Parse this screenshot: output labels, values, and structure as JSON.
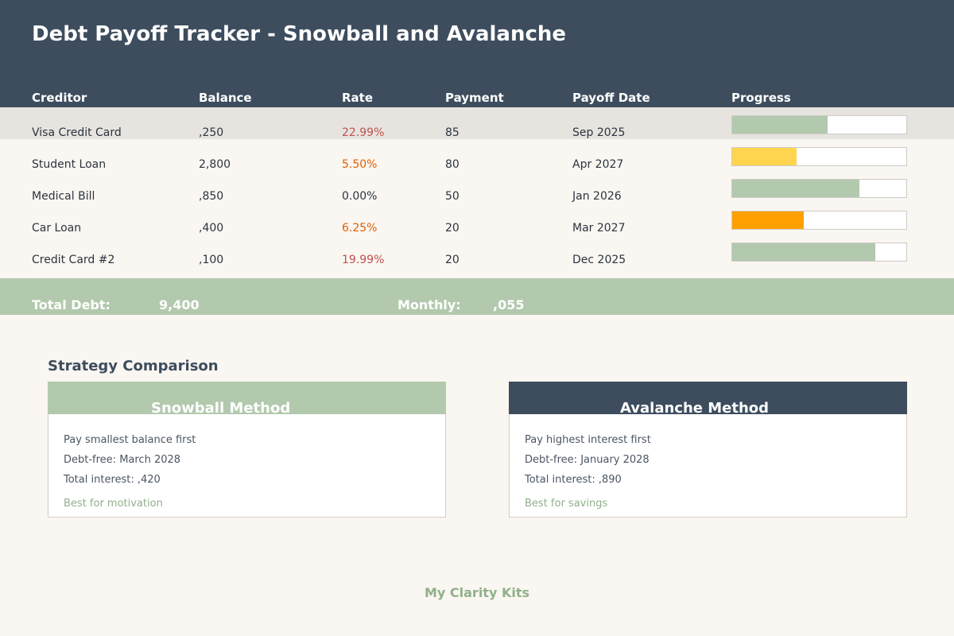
{
  "title": "Debt Payoff Tracker - Snowball and Avalanche",
  "columns": {
    "creditor": "Creditor",
    "balance": "Balance",
    "rate": "Rate",
    "payment": "Payment",
    "payoff_date": "Payoff Date",
    "progress": "Progress"
  },
  "debts": [
    {
      "creditor": "Visa Credit Card",
      "balance": ",250",
      "rate": "22.99%",
      "payment": "85",
      "payoff_date": "Sep 2025",
      "progress": 0.55,
      "rate_color": "#c0504d",
      "progress_color": "#b3c9ae"
    },
    {
      "creditor": "Student Loan",
      "balance": "2,800",
      "rate": "5.50%",
      "payment": "80",
      "payoff_date": "Apr 2027",
      "progress": 0.37,
      "rate_color": "#e06000",
      "progress_color": "#ffd54f"
    },
    {
      "creditor": "Medical Bill",
      "balance": ",850",
      "rate": "0.00%",
      "payment": "50",
      "payoff_date": "Jan 2026",
      "progress": 0.73,
      "rate_color": "#2c3440",
      "progress_color": "#b3c9ae"
    },
    {
      "creditor": "Car Loan",
      "balance": ",400",
      "rate": "6.25%",
      "payment": "20",
      "payoff_date": "Mar 2027",
      "progress": 0.41,
      "rate_color": "#e06000",
      "progress_color": "#ff9f00"
    },
    {
      "creditor": "Credit Card #2",
      "balance": ",100",
      "rate": "19.99%",
      "payment": "20",
      "payoff_date": "Dec 2025",
      "progress": 0.82,
      "rate_color": "#c0504d",
      "progress_color": "#b3c9ae"
    }
  ],
  "totals": {
    "debt_label": "Total Debt:",
    "debt_value": "9,400",
    "monthly_label": "Monthly:",
    "monthly_value": ",055"
  },
  "strategy": {
    "section_title": "Strategy Comparison",
    "snowball": {
      "title": "Snowball Method",
      "desc": "Pay smallest balance first",
      "debt_free": "Debt-free: March 2028",
      "interest": "Total interest: ,420",
      "note": "Best for motivation",
      "header_color": "#b3c9ae"
    },
    "avalanche": {
      "title": "Avalanche Method",
      "desc": "Pay highest interest first",
      "debt_free": "Debt-free: January 2028",
      "interest": "Total interest: ,890",
      "note": "Best for savings",
      "header_color": "#3d4d5e"
    }
  },
  "brand": "My Clarity Kits"
}
